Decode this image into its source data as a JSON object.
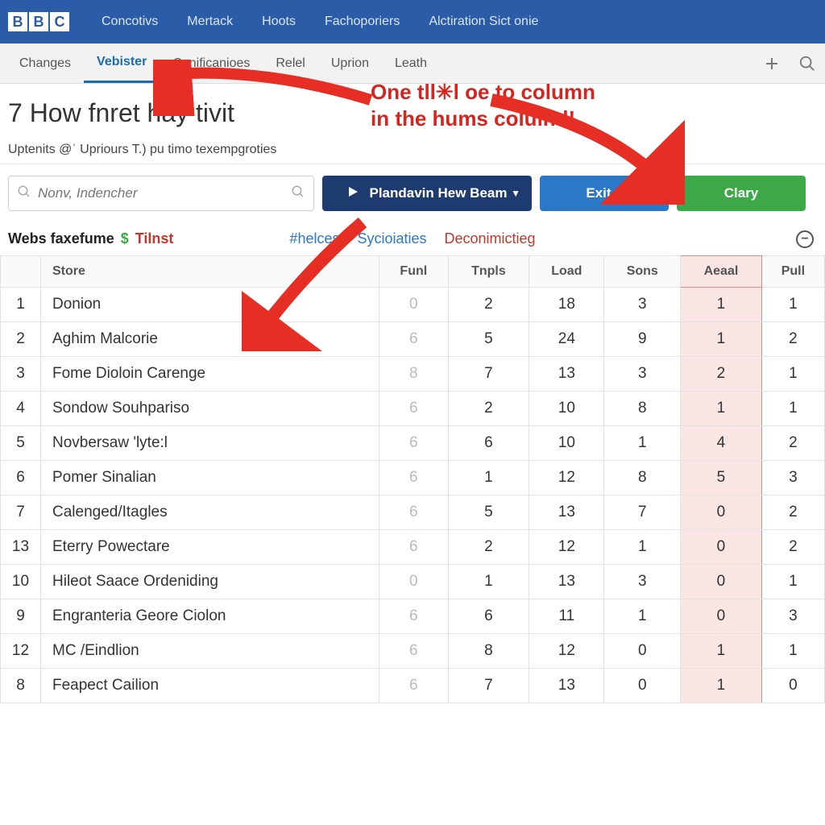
{
  "brand": {
    "l1": "B",
    "l2": "B",
    "l3": "C"
  },
  "topnav": [
    "Concotivs",
    "Mertack",
    "Hoots",
    "Fachoporiers",
    "Alctiration Sict onie"
  ],
  "tabs": [
    "Changes",
    "Vebister",
    "Conificanioes",
    "Relel",
    "Uprion",
    "Leath"
  ],
  "active_tab": 1,
  "heading": "7 How fnret hay tivit",
  "subheader": "Uptenits @ˈ Upriours T.) pu timo texempgroties",
  "search_placeholder": "Nonv, Indencher",
  "btn_primary": "Plandavin Hew Beam",
  "btn_blue": "Exit...",
  "btn_green": "Clary",
  "filter_label": "Webs faxefume",
  "filter_link1": "Tilnst",
  "filter_center": [
    {
      "label": "#helces",
      "color": "#2b78c7"
    },
    {
      "label": "Sycioiaties",
      "color": "#2b78c7"
    },
    {
      "label": "Deconimictieg",
      "color": "#c0392b"
    }
  ],
  "annotation_text": "One tll✳l oe to column\nin the hums coluind!",
  "annotation_color": "#d8241f",
  "arrow_color": "#e62e25",
  "columns": [
    "",
    "Store",
    "Funl",
    "Tnpls",
    "Load",
    "Sons",
    "Aeaal",
    "Pull"
  ],
  "highlight_col_index": 6,
  "rows": [
    {
      "n": "1",
      "store": "Donion",
      "v": [
        "0",
        "2",
        "18",
        "3",
        "1",
        "1"
      ]
    },
    {
      "n": "2",
      "store": "Aghim Malcorie",
      "v": [
        "6",
        "5",
        "24",
        "9",
        "1",
        "2"
      ]
    },
    {
      "n": "3",
      "store": "Fome Dioloin Carenge",
      "v": [
        "8",
        "7",
        "13",
        "3",
        "2",
        "1"
      ]
    },
    {
      "n": "4",
      "store": "Sondow Souhpariso",
      "v": [
        "6",
        "2",
        "10",
        "8",
        "1",
        "1"
      ]
    },
    {
      "n": "5",
      "store": "Novbersaw 'lyte:l",
      "v": [
        "6",
        "6",
        "10",
        "1",
        "4",
        "2"
      ]
    },
    {
      "n": "6",
      "store": "Pomer Sinalian",
      "v": [
        "6",
        "1",
        "12",
        "8",
        "5",
        "3"
      ]
    },
    {
      "n": "7",
      "store": "Calenged/Itagles",
      "v": [
        "6",
        "5",
        "13",
        "7",
        "0",
        "2"
      ]
    },
    {
      "n": "13",
      "store": "Eterry Powectare",
      "v": [
        "6",
        "2",
        "12",
        "1",
        "0",
        "2"
      ]
    },
    {
      "n": "10",
      "store": "Hileot Saace Ordeniding",
      "v": [
        "0",
        "1",
        "13",
        "3",
        "0",
        "1"
      ]
    },
    {
      "n": "9",
      "store": "Engranteria Geore Ciolon",
      "v": [
        "6",
        "6",
        "11",
        "1",
        "0",
        "3"
      ]
    },
    {
      "n": "12",
      "store": "MC /Eindlion",
      "v": [
        "6",
        "8",
        "12",
        "0",
        "1",
        "1"
      ]
    },
    {
      "n": "8",
      "store": "Feapect Cailion",
      "v": [
        "6",
        "7",
        "13",
        "0",
        "1",
        "0"
      ]
    }
  ]
}
